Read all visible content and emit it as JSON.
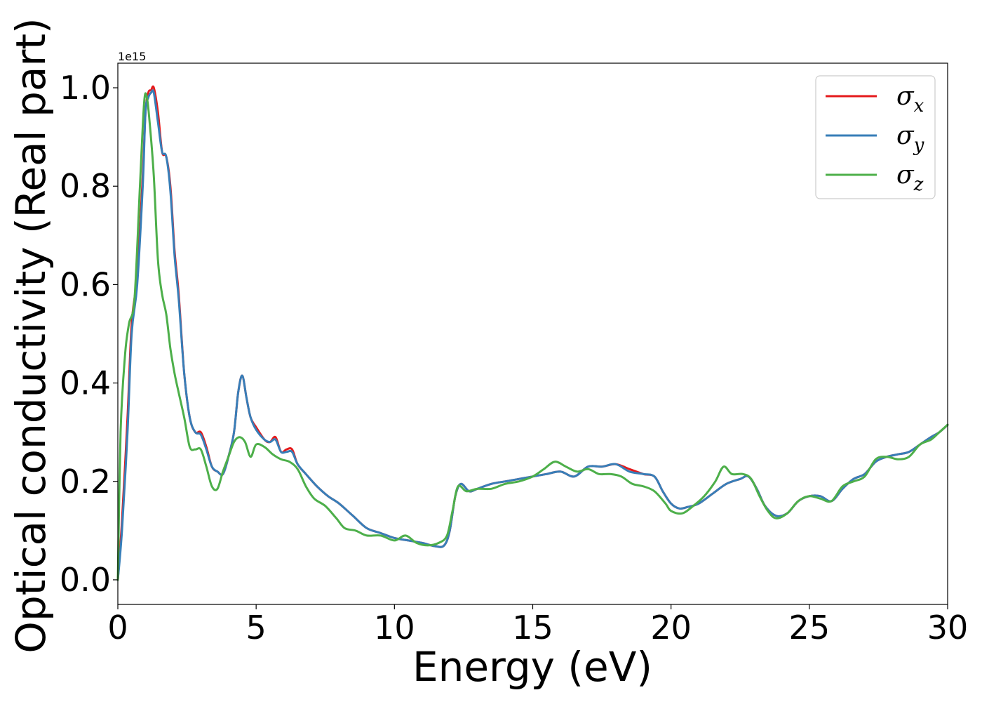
{
  "chart_data": {
    "type": "line",
    "title": "",
    "xlabel": "Energy (eV)",
    "ylabel": "Optical conductivity (Real part)",
    "y_offset_label": "1e15",
    "xlim": [
      0,
      30
    ],
    "ylim": [
      -0.05,
      1.05
    ],
    "xticks": [
      0,
      5,
      10,
      15,
      20,
      25,
      30
    ],
    "xtick_labels": [
      "0",
      "5",
      "10",
      "15",
      "20",
      "25",
      "30"
    ],
    "yticks": [
      0.0,
      0.2,
      0.4,
      0.6,
      0.8,
      1.0
    ],
    "ytick_labels": [
      "0.0",
      "0.2",
      "0.4",
      "0.6",
      "0.8",
      "1.0"
    ],
    "grid": false,
    "legend_position": "top-right",
    "series": [
      {
        "name": "σx",
        "symbol": "σ",
        "subscript": "x",
        "color": "#e41a1c",
        "x": [
          0,
          0.15,
          0.35,
          0.5,
          0.7,
          0.9,
          1.0,
          1.1,
          1.2,
          1.3,
          1.45,
          1.6,
          1.75,
          1.9,
          2.05,
          2.2,
          2.4,
          2.6,
          2.8,
          3.0,
          3.2,
          3.4,
          3.6,
          3.8,
          4.0,
          4.2,
          4.35,
          4.5,
          4.65,
          4.8,
          5.0,
          5.3,
          5.5,
          5.7,
          5.9,
          6.1,
          6.3,
          6.5,
          6.8,
          7.2,
          7.6,
          8.0,
          8.5,
          9.0,
          9.5,
          10.0,
          10.5,
          11.0,
          11.5,
          11.8,
          12.0,
          12.2,
          12.4,
          12.7,
          13.0,
          13.5,
          14.0,
          14.5,
          15.0,
          15.5,
          16.0,
          16.5,
          17.0,
          17.5,
          18.0,
          18.5,
          19.0,
          19.4,
          19.7,
          20.0,
          20.3,
          20.6,
          21.0,
          21.5,
          22.0,
          22.5,
          22.8,
          23.1,
          23.4,
          23.8,
          24.2,
          24.6,
          25.0,
          25.4,
          25.8,
          26.2,
          26.6,
          27.0,
          27.4,
          27.8,
          28.2,
          28.6,
          29.0,
          29.4,
          29.7,
          30.0
        ],
        "y": [
          0.0,
          0.12,
          0.33,
          0.52,
          0.62,
          0.82,
          0.95,
          0.99,
          0.995,
          1.0,
          0.95,
          0.87,
          0.86,
          0.8,
          0.67,
          0.58,
          0.42,
          0.33,
          0.3,
          0.3,
          0.27,
          0.23,
          0.22,
          0.215,
          0.25,
          0.3,
          0.38,
          0.415,
          0.37,
          0.33,
          0.31,
          0.285,
          0.28,
          0.29,
          0.26,
          0.265,
          0.265,
          0.235,
          0.215,
          0.19,
          0.17,
          0.155,
          0.13,
          0.105,
          0.095,
          0.085,
          0.08,
          0.075,
          0.068,
          0.07,
          0.1,
          0.17,
          0.195,
          0.18,
          0.185,
          0.195,
          0.2,
          0.205,
          0.21,
          0.215,
          0.22,
          0.21,
          0.23,
          0.23,
          0.235,
          0.225,
          0.215,
          0.21,
          0.18,
          0.155,
          0.145,
          0.148,
          0.155,
          0.175,
          0.195,
          0.205,
          0.21,
          0.185,
          0.15,
          0.13,
          0.135,
          0.16,
          0.17,
          0.17,
          0.16,
          0.185,
          0.205,
          0.215,
          0.24,
          0.25,
          0.255,
          0.26,
          0.275,
          0.29,
          0.3,
          0.315
        ]
      },
      {
        "name": "σy",
        "symbol": "σ",
        "subscript": "y",
        "color": "#377eb8",
        "x": [
          0,
          0.15,
          0.35,
          0.5,
          0.7,
          0.9,
          1.0,
          1.1,
          1.2,
          1.3,
          1.45,
          1.6,
          1.75,
          1.9,
          2.05,
          2.2,
          2.4,
          2.6,
          2.8,
          3.0,
          3.2,
          3.4,
          3.6,
          3.8,
          4.0,
          4.2,
          4.35,
          4.5,
          4.65,
          4.8,
          5.0,
          5.3,
          5.5,
          5.7,
          5.9,
          6.1,
          6.3,
          6.5,
          6.8,
          7.2,
          7.6,
          8.0,
          8.5,
          9.0,
          9.5,
          10.0,
          10.5,
          11.0,
          11.5,
          11.8,
          12.0,
          12.2,
          12.4,
          12.7,
          13.0,
          13.5,
          14.0,
          14.5,
          15.0,
          15.5,
          16.0,
          16.5,
          17.0,
          17.5,
          18.0,
          18.5,
          19.0,
          19.4,
          19.7,
          20.0,
          20.3,
          20.6,
          21.0,
          21.5,
          22.0,
          22.5,
          22.8,
          23.1,
          23.4,
          23.8,
          24.2,
          24.6,
          25.0,
          25.4,
          25.8,
          26.2,
          26.6,
          27.0,
          27.4,
          27.8,
          28.2,
          28.6,
          29.0,
          29.4,
          29.7,
          30.0
        ],
        "y": [
          0.0,
          0.1,
          0.3,
          0.5,
          0.6,
          0.8,
          0.95,
          0.98,
          0.99,
          0.99,
          0.93,
          0.87,
          0.86,
          0.79,
          0.66,
          0.57,
          0.42,
          0.33,
          0.3,
          0.295,
          0.265,
          0.23,
          0.22,
          0.215,
          0.25,
          0.3,
          0.38,
          0.415,
          0.37,
          0.33,
          0.305,
          0.285,
          0.28,
          0.285,
          0.26,
          0.26,
          0.26,
          0.235,
          0.215,
          0.19,
          0.17,
          0.155,
          0.13,
          0.105,
          0.095,
          0.085,
          0.08,
          0.075,
          0.068,
          0.07,
          0.1,
          0.17,
          0.195,
          0.18,
          0.185,
          0.195,
          0.2,
          0.205,
          0.21,
          0.215,
          0.22,
          0.21,
          0.23,
          0.23,
          0.235,
          0.22,
          0.215,
          0.21,
          0.18,
          0.155,
          0.145,
          0.148,
          0.155,
          0.175,
          0.195,
          0.205,
          0.21,
          0.185,
          0.15,
          0.13,
          0.135,
          0.16,
          0.17,
          0.17,
          0.16,
          0.185,
          0.205,
          0.215,
          0.24,
          0.25,
          0.255,
          0.26,
          0.275,
          0.29,
          0.3,
          0.315
        ]
      },
      {
        "name": "σz",
        "symbol": "σ",
        "subscript": "z",
        "color": "#4daf4a",
        "x": [
          0,
          0.1,
          0.25,
          0.4,
          0.6,
          0.8,
          0.95,
          1.05,
          1.15,
          1.3,
          1.45,
          1.6,
          1.75,
          1.9,
          2.05,
          2.2,
          2.4,
          2.6,
          2.8,
          3.0,
          3.2,
          3.4,
          3.6,
          3.8,
          4.0,
          4.2,
          4.4,
          4.6,
          4.8,
          5.0,
          5.3,
          5.6,
          5.9,
          6.2,
          6.5,
          6.8,
          7.1,
          7.5,
          7.9,
          8.2,
          8.6,
          9.0,
          9.5,
          10.0,
          10.4,
          10.8,
          11.2,
          11.6,
          11.9,
          12.1,
          12.3,
          12.6,
          13.0,
          13.5,
          14.0,
          14.5,
          15.0,
          15.4,
          15.8,
          16.2,
          16.6,
          17.0,
          17.4,
          17.8,
          18.2,
          18.6,
          19.0,
          19.4,
          19.8,
          20.0,
          20.4,
          20.8,
          21.2,
          21.6,
          21.9,
          22.2,
          22.6,
          22.9,
          23.2,
          23.5,
          23.8,
          24.2,
          24.6,
          25.0,
          25.4,
          25.8,
          26.2,
          26.6,
          27.0,
          27.4,
          27.8,
          28.2,
          28.6,
          29.0,
          29.4,
          29.7,
          30.0
        ],
        "y": [
          0.0,
          0.3,
          0.45,
          0.52,
          0.57,
          0.8,
          0.97,
          0.98,
          0.93,
          0.82,
          0.65,
          0.58,
          0.54,
          0.47,
          0.42,
          0.38,
          0.33,
          0.27,
          0.265,
          0.265,
          0.23,
          0.19,
          0.185,
          0.22,
          0.25,
          0.28,
          0.29,
          0.28,
          0.25,
          0.275,
          0.27,
          0.255,
          0.245,
          0.24,
          0.225,
          0.19,
          0.165,
          0.15,
          0.125,
          0.105,
          0.1,
          0.09,
          0.09,
          0.08,
          0.09,
          0.075,
          0.07,
          0.075,
          0.09,
          0.14,
          0.19,
          0.18,
          0.185,
          0.185,
          0.195,
          0.2,
          0.21,
          0.225,
          0.24,
          0.23,
          0.22,
          0.225,
          0.215,
          0.215,
          0.21,
          0.195,
          0.19,
          0.18,
          0.155,
          0.14,
          0.135,
          0.15,
          0.17,
          0.2,
          0.23,
          0.215,
          0.215,
          0.205,
          0.17,
          0.14,
          0.125,
          0.135,
          0.16,
          0.17,
          0.165,
          0.16,
          0.19,
          0.2,
          0.21,
          0.245,
          0.25,
          0.245,
          0.25,
          0.275,
          0.285,
          0.3,
          0.315
        ]
      }
    ]
  }
}
